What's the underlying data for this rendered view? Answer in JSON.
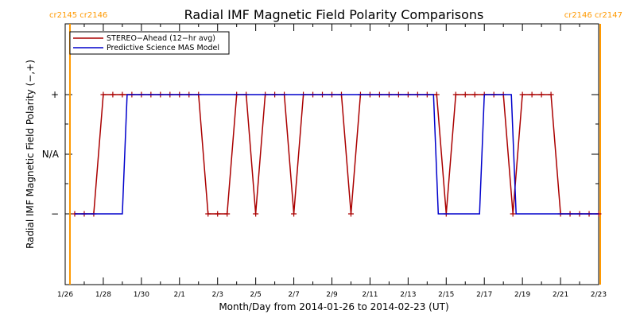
{
  "chart_data": {
    "type": "line",
    "title": "Radial IMF Magnetic Field Polarity Comparisons",
    "xlabel": "Month/Day from 2014-01-26 to 2014-02-23 (UT)",
    "ylabel": "Radial IMF Magnetic Field Polarity (−,+)",
    "xlim": [
      "2014-01-26",
      "2014-02-23"
    ],
    "x_ticks": [
      "1/26",
      "1/28",
      "1/30",
      "2/1",
      "2/3",
      "2/5",
      "2/7",
      "2/9",
      "2/11",
      "2/13",
      "2/15",
      "2/17",
      "2/19",
      "2/21",
      "2/23"
    ],
    "y_categories": [
      "−",
      "N/A",
      "+"
    ],
    "y_tick_labels": [
      "−",
      "N/A",
      "+"
    ],
    "series": [
      {
        "name": "STEREO−Ahead (12−hr avg)",
        "color": "#aa0000",
        "markers": true,
        "points": [
          [
            "2014-01-26T12:00",
            "−"
          ],
          [
            "2014-01-27T00:00",
            "−"
          ],
          [
            "2014-01-27T12:00",
            "−"
          ],
          [
            "2014-01-28T00:00",
            "+"
          ],
          [
            "2014-01-28T12:00",
            "+"
          ],
          [
            "2014-01-29T00:00",
            "+"
          ],
          [
            "2014-01-29T12:00",
            "+"
          ],
          [
            "2014-01-30T00:00",
            "+"
          ],
          [
            "2014-01-30T12:00",
            "+"
          ],
          [
            "2014-01-31T00:00",
            "+"
          ],
          [
            "2014-01-31T12:00",
            "+"
          ],
          [
            "2014-02-01T00:00",
            "+"
          ],
          [
            "2014-02-01T12:00",
            "+"
          ],
          [
            "2014-02-02T00:00",
            "+"
          ],
          [
            "2014-02-02T12:00",
            "−"
          ],
          [
            "2014-02-03T00:00",
            "−"
          ],
          [
            "2014-02-03T12:00",
            "−"
          ],
          [
            "2014-02-04T00:00",
            "+"
          ],
          [
            "2014-02-04T12:00",
            "+"
          ],
          [
            "2014-02-05T00:00",
            "−"
          ],
          [
            "2014-02-05T12:00",
            "+"
          ],
          [
            "2014-02-06T00:00",
            "+"
          ],
          [
            "2014-02-06T12:00",
            "+"
          ],
          [
            "2014-02-07T00:00",
            "−"
          ],
          [
            "2014-02-07T12:00",
            "+"
          ],
          [
            "2014-02-08T00:00",
            "+"
          ],
          [
            "2014-02-08T12:00",
            "+"
          ],
          [
            "2014-02-09T00:00",
            "+"
          ],
          [
            "2014-02-09T12:00",
            "+"
          ],
          [
            "2014-02-10T00:00",
            "−"
          ],
          [
            "2014-02-10T12:00",
            "+"
          ],
          [
            "2014-02-11T00:00",
            "+"
          ],
          [
            "2014-02-11T12:00",
            "+"
          ],
          [
            "2014-02-12T00:00",
            "+"
          ],
          [
            "2014-02-12T12:00",
            "+"
          ],
          [
            "2014-02-13T00:00",
            "+"
          ],
          [
            "2014-02-13T12:00",
            "+"
          ],
          [
            "2014-02-14T00:00",
            "+"
          ],
          [
            "2014-02-14T12:00",
            "+"
          ],
          [
            "2014-02-15T00:00",
            "−"
          ],
          [
            "2014-02-15T12:00",
            "+"
          ],
          [
            "2014-02-16T00:00",
            "+"
          ],
          [
            "2014-02-16T12:00",
            "+"
          ],
          [
            "2014-02-17T00:00",
            "+"
          ],
          [
            "2014-02-17T12:00",
            "+"
          ],
          [
            "2014-02-18T00:00",
            "+"
          ],
          [
            "2014-02-18T12:00",
            "−"
          ],
          [
            "2014-02-19T00:00",
            "+"
          ],
          [
            "2014-02-19T12:00",
            "+"
          ],
          [
            "2014-02-20T00:00",
            "+"
          ],
          [
            "2014-02-20T12:00",
            "+"
          ],
          [
            "2014-02-21T00:00",
            "−"
          ],
          [
            "2014-02-21T12:00",
            "−"
          ],
          [
            "2014-02-22T00:00",
            "−"
          ],
          [
            "2014-02-22T12:00",
            "−"
          ],
          [
            "2014-02-23T00:00",
            "−"
          ]
        ]
      },
      {
        "name": "Predictive Science MAS Model",
        "color": "#0000cc",
        "markers": false,
        "points": [
          [
            "2014-01-26T12:00",
            "−"
          ],
          [
            "2014-01-29T00:00",
            "−"
          ],
          [
            "2014-01-29T06:00",
            "+"
          ],
          [
            "2014-02-14T08:00",
            "+"
          ],
          [
            "2014-02-14T14:00",
            "−"
          ],
          [
            "2014-02-16T18:00",
            "−"
          ],
          [
            "2014-02-17T00:00",
            "+"
          ],
          [
            "2014-02-18T10:00",
            "+"
          ],
          [
            "2014-02-18T16:00",
            "−"
          ],
          [
            "2014-02-23T00:00",
            "−"
          ]
        ]
      }
    ],
    "vertical_markers": [
      {
        "date": "2014-01-26T06:00",
        "color": "#ff9900",
        "labels": [
          "cr2145",
          "cr2146"
        ],
        "side": "left"
      },
      {
        "date": "2014-02-23T02:00",
        "color": "#ff9900",
        "labels": [
          "cr2146",
          "cr2147"
        ],
        "side": "right"
      }
    ],
    "legend_position": "top-left",
    "grid": false
  }
}
